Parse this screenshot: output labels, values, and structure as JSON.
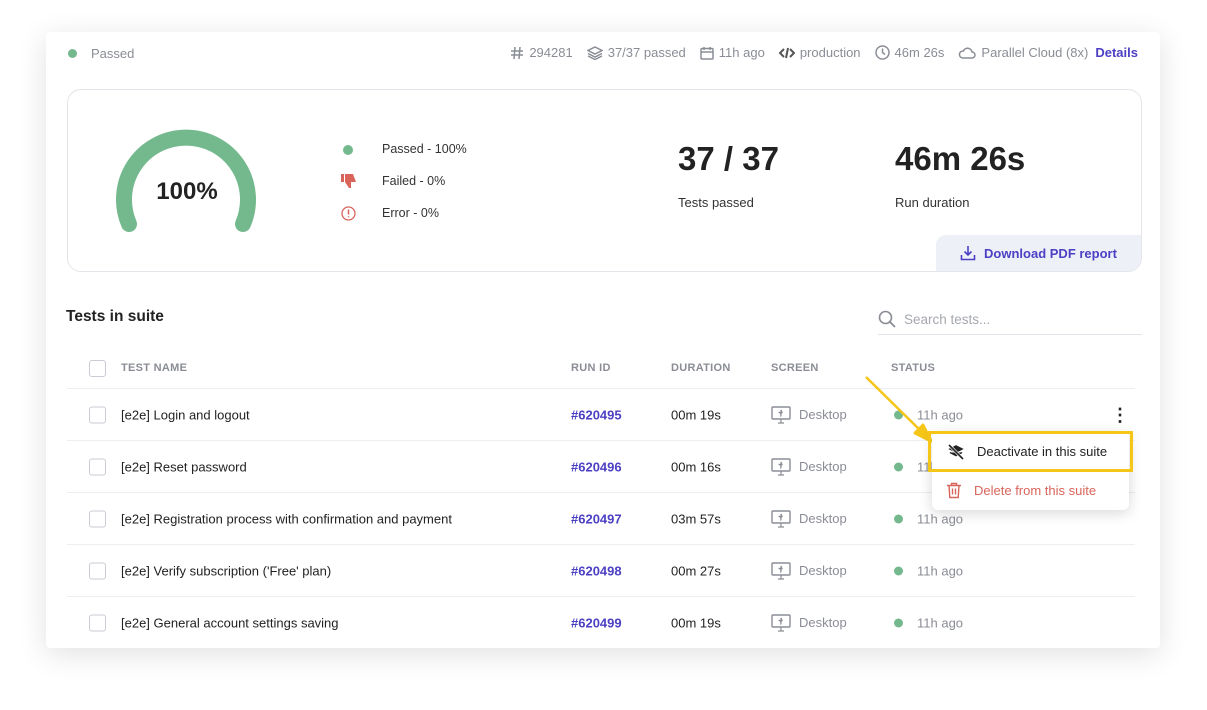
{
  "header": {
    "status": "Passed",
    "build": "294281",
    "tests": "37/37 passed",
    "time": "11h ago",
    "env": "production",
    "duration": "46m 26s",
    "runner": "Parallel Cloud (8x)",
    "details": "Details"
  },
  "summary": {
    "gauge_value": "100%",
    "gauge_fraction": 1.0,
    "legend": [
      {
        "label": "Passed - 100%"
      },
      {
        "label": "Failed - 0%"
      },
      {
        "label": "Error - 0%"
      }
    ],
    "tests_value": "37 / 37",
    "tests_label": "Tests passed",
    "duration_value": "46m 26s",
    "duration_label": "Run duration",
    "download": "Download PDF report"
  },
  "colors": {
    "pass": "#74b98d",
    "fail": "#d9645a",
    "accent": "#4b3fc4",
    "highlight": "#f5c518"
  },
  "suite": {
    "title": "Tests in suite",
    "search_placeholder": "Search tests...",
    "columns": [
      "TEST NAME",
      "RUN ID",
      "DURATION",
      "SCREEN",
      "STATUS"
    ],
    "rows": [
      {
        "name": "[e2e] Login and logout",
        "run_id": "#620495",
        "duration": "00m 19s",
        "screen": "Desktop",
        "status": "11h ago"
      },
      {
        "name": "[e2e] Reset password",
        "run_id": "#620496",
        "duration": "00m 16s",
        "screen": "Desktop",
        "status": "11h ago"
      },
      {
        "name": "[e2e] Registration process with confirmation and payment",
        "run_id": "#620497",
        "duration": "03m 57s",
        "screen": "Desktop",
        "status": "11h ago"
      },
      {
        "name": "[e2e] Verify subscription ('Free' plan)",
        "run_id": "#620498",
        "duration": "00m 27s",
        "screen": "Desktop",
        "status": "11h ago"
      },
      {
        "name": "[e2e] General account settings saving",
        "run_id": "#620499",
        "duration": "00m 19s",
        "screen": "Desktop",
        "status": "11h ago"
      }
    ]
  },
  "menu": {
    "deactivate": "Deactivate in this suite",
    "delete": "Delete from this suite"
  }
}
